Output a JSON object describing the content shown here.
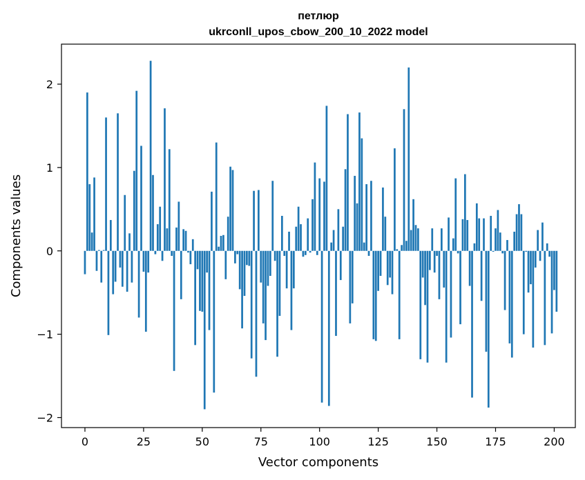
{
  "chart_data": {
    "type": "bar",
    "title_line1": "петлюр",
    "title_line2": "ukrconll_upos_cbow_200_10_2022 model",
    "xlabel": "Vector components",
    "ylabel": "Components values",
    "xlim": [
      -10,
      209
    ],
    "ylim": [
      -2.12,
      2.48
    ],
    "xticks": [
      0,
      25,
      50,
      75,
      100,
      125,
      150,
      175,
      200
    ],
    "xtick_labels": [
      "0",
      "25",
      "50",
      "75",
      "100",
      "125",
      "150",
      "175",
      "200"
    ],
    "yticks": [
      -2,
      -1,
      0,
      1,
      2
    ],
    "ytick_labels": [
      "−2",
      "−1",
      "0",
      "1",
      "2"
    ],
    "grid": false,
    "bar_color": "#1f77b4",
    "values": [
      -0.28,
      1.9,
      0.8,
      0.22,
      0.88,
      -0.24,
      0.01,
      -0.38,
      0.01,
      1.6,
      -1.01,
      0.37,
      -0.52,
      -0.37,
      1.65,
      -0.2,
      -0.43,
      0.67,
      -0.49,
      0.21,
      -0.38,
      0.96,
      1.92,
      -0.8,
      1.26,
      -0.25,
      -0.97,
      -0.26,
      2.28,
      0.91,
      -0.04,
      0.32,
      0.53,
      -0.12,
      1.71,
      0.27,
      1.22,
      -0.06,
      -1.44,
      0.28,
      0.59,
      -0.58,
      0.26,
      0.24,
      -0.02,
      -0.16,
      0.14,
      -1.13,
      -0.22,
      -0.72,
      -0.73,
      -1.9,
      -0.26,
      -0.95,
      0.71,
      -1.7,
      1.3,
      0.05,
      0.18,
      0.19,
      -0.34,
      0.41,
      1.01,
      0.97,
      -0.15,
      -0.04,
      -0.46,
      -0.93,
      -0.54,
      -0.17,
      -0.18,
      -1.29,
      0.72,
      -1.51,
      0.73,
      -0.38,
      -0.87,
      -1.07,
      -0.42,
      -0.3,
      0.84,
      -0.12,
      -1.27,
      -0.78,
      0.42,
      -0.06,
      -0.45,
      0.23,
      -0.95,
      -0.45,
      0.29,
      0.53,
      0.32,
      -0.07,
      -0.05,
      0.39,
      -0.02,
      0.62,
      1.06,
      -0.05,
      0.87,
      -1.82,
      0.83,
      1.74,
      -1.86,
      0.1,
      0.25,
      -1.02,
      0.5,
      -0.35,
      0.29,
      0.98,
      1.64,
      -0.87,
      -0.63,
      0.9,
      0.57,
      1.66,
      1.35,
      0.1,
      0.8,
      -0.06,
      0.84,
      -1.06,
      -1.08,
      -0.48,
      -0.3,
      0.76,
      0.41,
      -0.41,
      -0.32,
      -0.52,
      1.23,
      0.02,
      -1.06,
      0.07,
      1.7,
      0.12,
      2.2,
      0.25,
      0.62,
      0.31,
      0.27,
      -1.3,
      -0.32,
      -0.65,
      -1.34,
      -0.23,
      0.27,
      -0.26,
      -0.06,
      -0.58,
      0.27,
      -0.44,
      -1.34,
      0.4,
      -1.04,
      0.15,
      0.87,
      -0.03,
      -0.88,
      0.38,
      0.92,
      0.37,
      -0.42,
      -1.76,
      0.09,
      0.57,
      0.39,
      -0.6,
      0.39,
      -1.21,
      -1.88,
      0.42,
      -0.01,
      0.27,
      0.49,
      0.22,
      -0.03,
      -0.71,
      0.13,
      -1.11,
      -1.28,
      0.23,
      0.44,
      0.56,
      0.44,
      -1.0,
      -0.01,
      -0.5,
      -0.4,
      -1.16,
      -0.2,
      0.25,
      -0.12,
      0.34,
      -1.13,
      0.09,
      -0.07,
      -0.99,
      -0.47,
      -0.73
    ]
  }
}
